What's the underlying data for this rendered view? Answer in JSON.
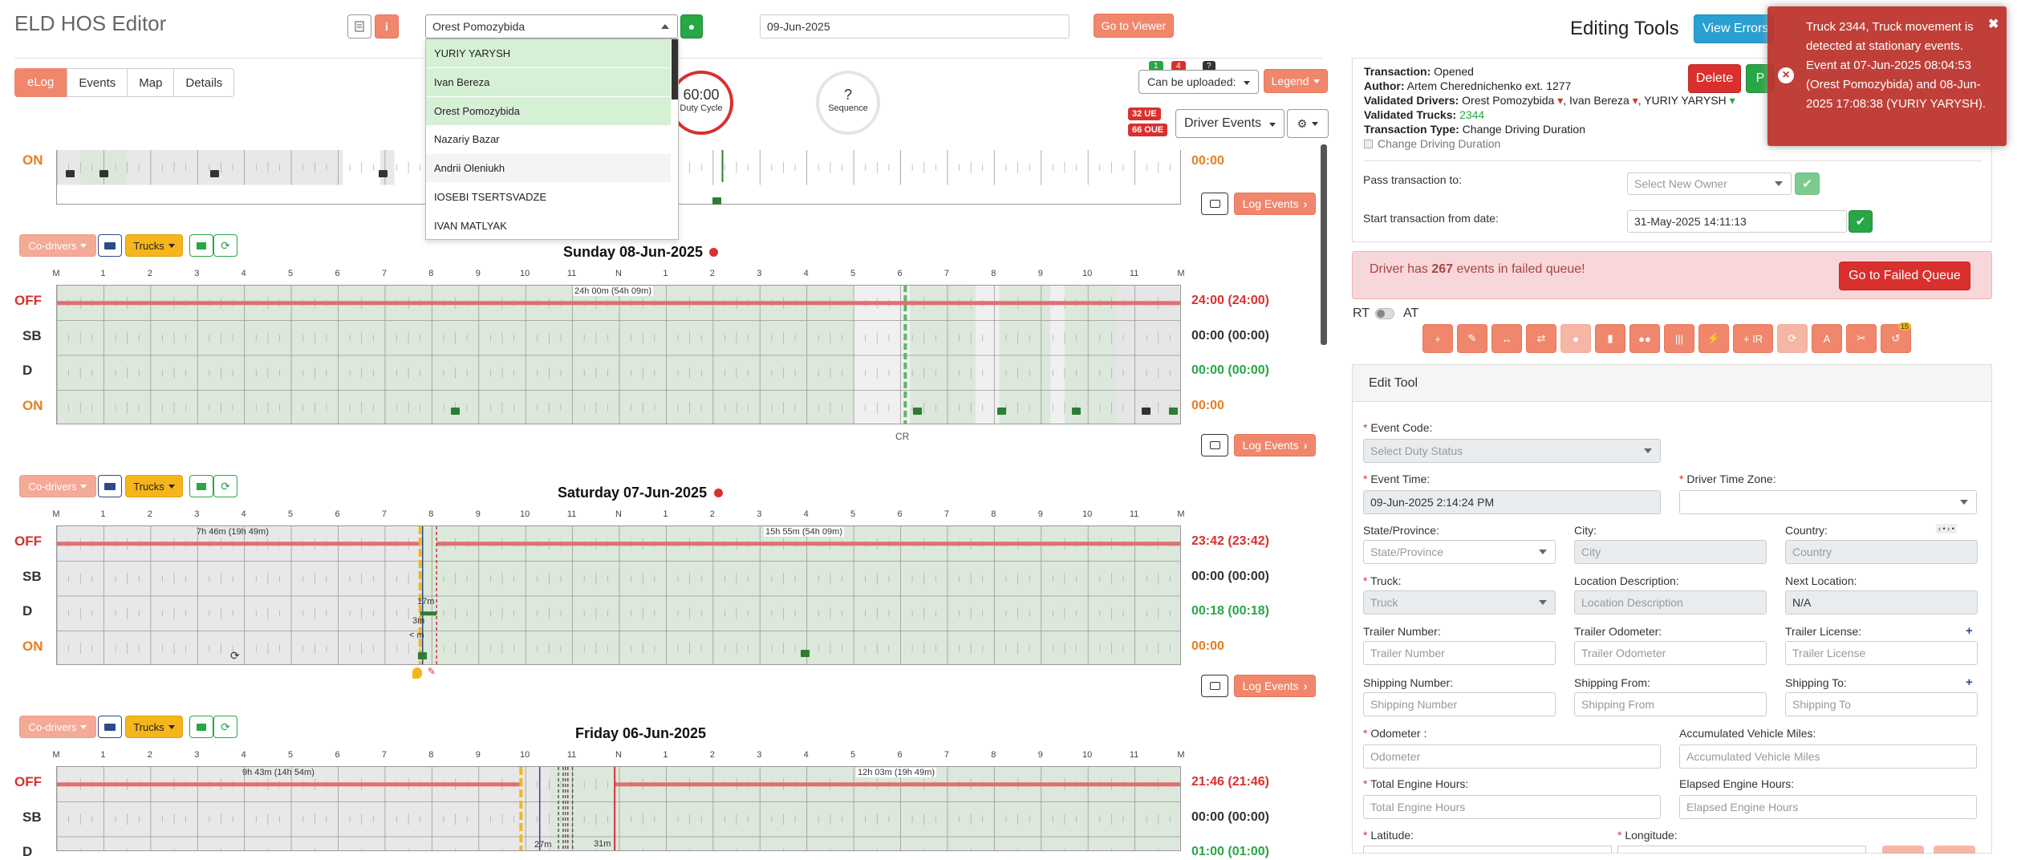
{
  "header": {
    "title": "ELD HOS Editor",
    "driver_select": "Orest Pomozybida",
    "date": "09-Jun-2025",
    "go_to_viewer": "Go to Viewer"
  },
  "dropdown": {
    "items": [
      "YURIY YARYSH",
      "Ivan Bereza",
      "Orest Pomozybida",
      "Nazariy Bazar",
      "Andrii Oleniukh",
      "IOSEBI TSERTSVADZE",
      "IVAN MATLYAK"
    ]
  },
  "tabs": [
    "eLog",
    "Events",
    "Map",
    "Details"
  ],
  "gauges": {
    "duty_value": "60:00",
    "duty_label": "Duty Cycle",
    "seq_value": "?",
    "seq_label": "Sequence"
  },
  "top_right": {
    "badge_green": "1",
    "badge_red": "4",
    "badge_dark": "?",
    "can_be_uploaded": "Can be uploaded:",
    "legend": "Legend",
    "ue": "32 UE",
    "oue": "66 OUE",
    "driver_events": "Driver Events"
  },
  "controls": {
    "co_drivers": "Co-drivers",
    "trucks": "Trucks",
    "log_events": "Log Events"
  },
  "hours": [
    "M",
    "1",
    "2",
    "3",
    "4",
    "5",
    "6",
    "7",
    "8",
    "9",
    "10",
    "11",
    "N",
    "1",
    "2",
    "3",
    "4",
    "5",
    "6",
    "7",
    "8",
    "9",
    "10",
    "11",
    "M"
  ],
  "rows": [
    "OFF",
    "SB",
    "D",
    "ON"
  ],
  "top_partial": {
    "on_total": "00:00"
  },
  "days": [
    {
      "title": "Sunday 08-Jun-2025",
      "off_note": "24h 00m (54h 09m)",
      "cr": "CR",
      "totals": [
        "24:00 (24:00)",
        "00:00 (00:00)",
        "00:00 (00:00)",
        "00:00"
      ]
    },
    {
      "title": "Saturday 07-Jun-2025",
      "off_note_left": "7h 46m (19h 49m)",
      "off_note_right": "15h 55m (54h 09m)",
      "d_note": "17m",
      "on_note": "3m",
      "on_note2": "< m",
      "totals": [
        "23:42 (23:42)",
        "00:00 (00:00)",
        "00:18 (00:18)",
        "00:00"
      ]
    },
    {
      "title": "Friday 06-Jun-2025",
      "off_note_left": "9h 43m (14h 54m)",
      "off_note_right": "12h 03m (19h 49m)",
      "d_note": "31m",
      "d_note2": "27m",
      "totals": [
        "21:46 (21:46)",
        "00:00 (00:00)",
        "01:00 (01:00)"
      ]
    }
  ],
  "editing": {
    "title": "Editing Tools",
    "view_errors": "View Errors",
    "delete": "Delete",
    "p_btn": "P",
    "transaction_label": "Transaction:",
    "transaction": "Opened",
    "author_label": "Author:",
    "author": "Artem Cherednichenko ext. 1277",
    "validated_drivers_label": "Validated Drivers:",
    "driver1": "Orest Pomozybida",
    "driver2": "Ivan Bereza",
    "driver3": "YURIY YARYSH",
    "validated_trucks_label": "Validated Trucks:",
    "truck": "2344",
    "transaction_type_label": "Transaction Type:",
    "transaction_type": "Change Driving Duration",
    "checkbox_label": "Change Driving Duration",
    "pass_to": "Pass transaction to:",
    "select_owner": "Select New Owner",
    "start_from": "Start transaction from date:",
    "start_date": "31-May-2025 14:11:13",
    "failed_pre": "Driver has ",
    "failed_count": "267",
    "failed_post": " events in failed queue!",
    "go_failed": "Go to Failed Queue",
    "rt": "RT",
    "at": "AT",
    "ir": "+ IR",
    "badge15": "15",
    "edit_tool": "Edit Tool"
  },
  "form": {
    "event_code": "Event Code:",
    "select_duty": "Select Duty Status",
    "event_time": "Event Time:",
    "event_time_val": "09-Jun-2025 2:14:24 PM",
    "driver_tz": "Driver Time Zone:",
    "state": "State/Province:",
    "state_ph": "State/Province",
    "city": "City:",
    "city_ph": "City",
    "country": "Country:",
    "country_ph": "Country",
    "truck": "Truck:",
    "truck_ph": "Truck",
    "loc_desc": "Location Description:",
    "loc_desc_ph": "Location Description",
    "next_loc": "Next Location:",
    "next_loc_val": "N/A",
    "trailer_num": "Trailer Number:",
    "trailer_num_ph": "Trailer Number",
    "trailer_odo": "Trailer Odometer:",
    "trailer_odo_ph": "Trailer Odometer",
    "trailer_lic": "Trailer License:",
    "trailer_lic_ph": "Trailer License",
    "ship_num": "Shipping Number:",
    "ship_num_ph": "Shipping Number",
    "ship_from": "Shipping From:",
    "ship_from_ph": "Shipping From",
    "ship_to": "Shipping To:",
    "ship_to_ph": "Shipping To",
    "odometer": "Odometer :",
    "odometer_ph": "Odometer",
    "acc_miles": "Accumulated Vehicle Miles:",
    "acc_miles_ph": "Accumulated Vehicle Miles",
    "total_hours": "Total Engine Hours:",
    "total_hours_ph": "Total Engine Hours",
    "elapsed_hours": "Elapsed Engine Hours:",
    "elapsed_hours_ph": "Elapsed Engine Hours",
    "latitude": "Latitude:",
    "longitude": "Longitude:"
  },
  "toast": {
    "message": "Truck 2344, Truck movement is detected at stationary events. Event at 07-Jun-2025 08:04:53 (Orest Pomozybida) and 08-Jun-2025 17:08:38 (YURIY YARYSH)."
  },
  "colors": {
    "salmon": "#f0876c",
    "yellow": "#f5b51b",
    "green": "#28a745",
    "red": "#d9302e",
    "off_line": "#e07070",
    "shade": "#dbe8db"
  }
}
